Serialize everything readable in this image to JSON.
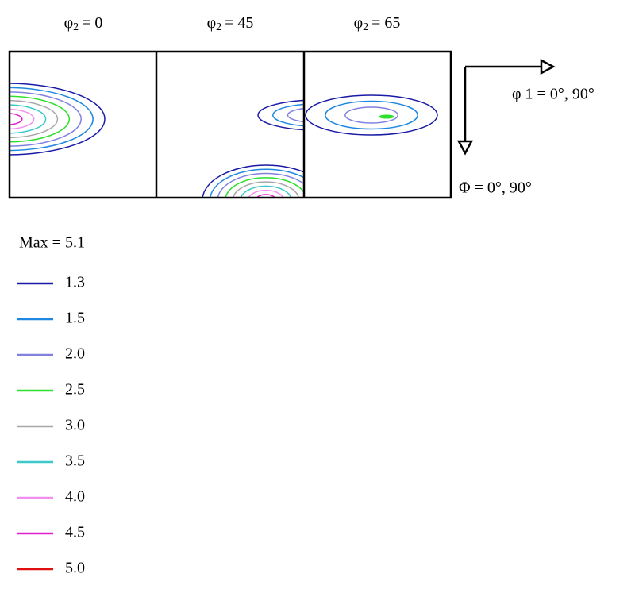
{
  "panels": [
    {
      "symbol": "φ",
      "subscript": "2",
      "text": "= 0"
    },
    {
      "symbol": "φ",
      "subscript": "2",
      "text": "= 45"
    },
    {
      "symbol": "φ",
      "subscript": "2",
      "text": "= 65"
    }
  ],
  "axes": {
    "horizontal": "φ 1 = 0°, 90°",
    "vertical": "Φ = 0°, 90°"
  },
  "legend": {
    "title": "Max = 5.1",
    "items": [
      {
        "label": "1.3",
        "color": "#1a1aa6"
      },
      {
        "label": "1.5",
        "color": "#1e88e0"
      },
      {
        "label": "2.0",
        "color": "#8080e0"
      },
      {
        "label": "2.5",
        "color": "#2ee02e"
      },
      {
        "label": "3.0",
        "color": "#a8a8a8"
      },
      {
        "label": "3.5",
        "color": "#3cc8c8"
      },
      {
        "label": "4.0",
        "color": "#f090f0"
      },
      {
        "label": "4.5",
        "color": "#e020d0"
      },
      {
        "label": "5.0",
        "color": "#e01010"
      }
    ]
  }
}
